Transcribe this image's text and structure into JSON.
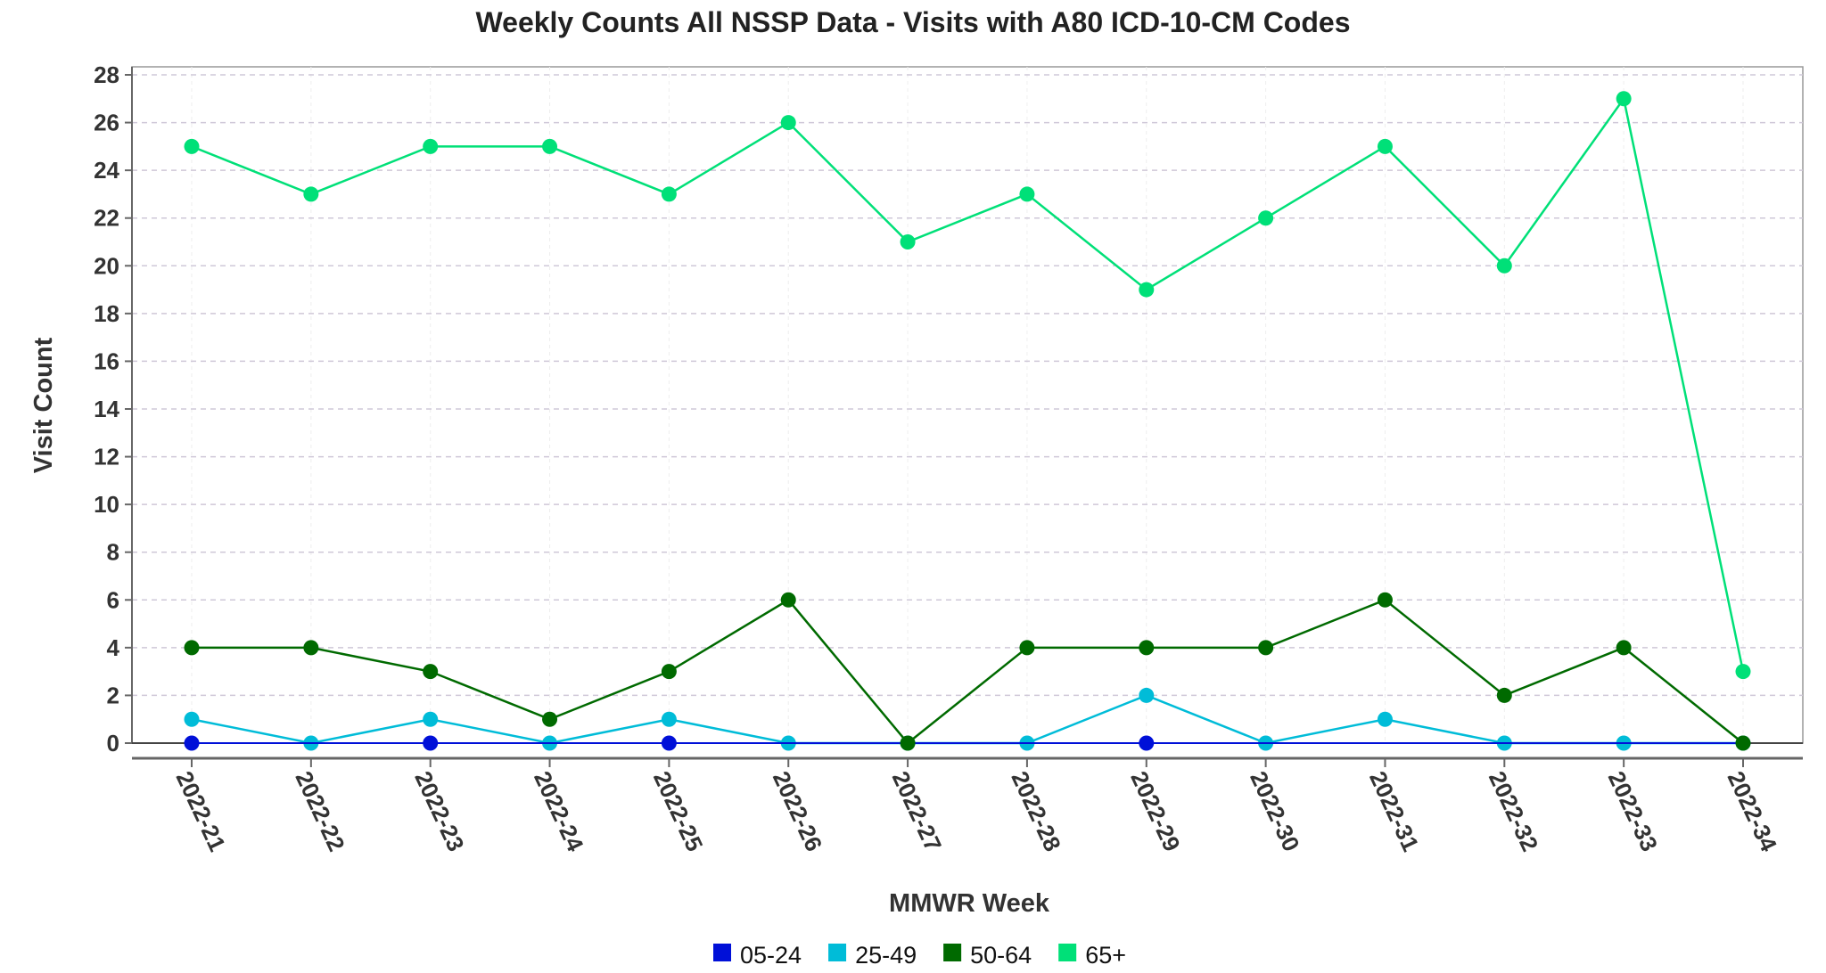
{
  "chart_data": {
    "type": "line",
    "title": "Weekly Counts All NSSP Data - Visits with A80 ICD-10-CM Codes",
    "xlabel": "MMWR Week",
    "ylabel": "Visit Count",
    "ylim": [
      0,
      28
    ],
    "yticks": [
      0,
      2,
      4,
      6,
      8,
      10,
      12,
      14,
      16,
      18,
      20,
      22,
      24,
      26,
      28
    ],
    "grid": true,
    "legend_placement": "bottom",
    "categories": [
      "2022-21",
      "2022-22",
      "2022-23",
      "2022-24",
      "2022-25",
      "2022-26",
      "2022-27",
      "2022-28",
      "2022-29",
      "2022-30",
      "2022-31",
      "2022-32",
      "2022-33",
      "2022-34"
    ],
    "series": [
      {
        "name": "05-24",
        "color": "#0010d8",
        "values": [
          0,
          null,
          0,
          null,
          0,
          null,
          null,
          null,
          0,
          null,
          null,
          null,
          null,
          null
        ]
      },
      {
        "name": "25-49",
        "color": "#00bcd8",
        "values": [
          1,
          0,
          1,
          0,
          1,
          0,
          0,
          0,
          2,
          0,
          1,
          0,
          0,
          0
        ]
      },
      {
        "name": "50-64",
        "color": "#006a00",
        "values": [
          4,
          4,
          3,
          1,
          3,
          6,
          0,
          4,
          4,
          4,
          6,
          2,
          4,
          0
        ]
      },
      {
        "name": "65+",
        "color": "#00e078",
        "values": [
          25,
          23,
          25,
          25,
          23,
          26,
          21,
          23,
          19,
          22,
          25,
          20,
          27,
          3
        ]
      }
    ]
  }
}
